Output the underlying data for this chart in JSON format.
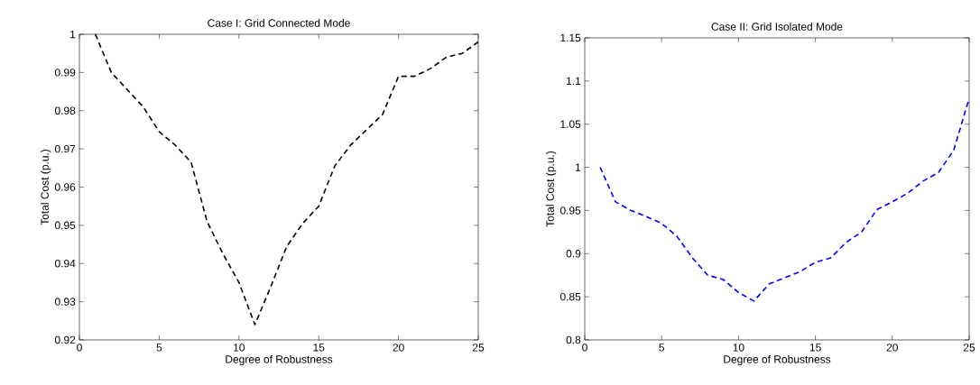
{
  "chart_data": [
    {
      "type": "line",
      "title": "Case I: Grid Connected Mode",
      "xlabel": "Degree of Robustness",
      "ylabel": "Total Cost (p.u.)",
      "x": [
        1,
        2,
        3,
        4,
        5,
        6,
        7,
        8,
        9,
        10,
        11,
        12,
        13,
        14,
        15,
        16,
        17,
        18,
        19,
        20,
        21,
        22,
        23,
        24,
        25
      ],
      "series": [
        {
          "color": "#000000",
          "values": [
            1.0,
            0.99,
            0.9855,
            0.981,
            0.9745,
            0.971,
            0.9665,
            0.951,
            0.9425,
            0.935,
            0.924,
            0.934,
            0.9445,
            0.9505,
            0.955,
            0.9655,
            0.971,
            0.975,
            0.979,
            0.989,
            0.989,
            0.991,
            0.994,
            0.995,
            0.998
          ]
        }
      ],
      "xlim": [
        0,
        25
      ],
      "ylim": [
        0.92,
        1
      ],
      "xticks": [
        0,
        5,
        10,
        15,
        20,
        25
      ],
      "yticks": [
        0.92,
        0.93,
        0.94,
        0.95,
        0.96,
        0.97,
        0.98,
        0.99,
        1
      ],
      "line_style": "dashed"
    },
    {
      "type": "line",
      "title": "Case II: Grid Isolated Mode",
      "xlabel": "Degree of Robustness",
      "ylabel": "Total Cost (p.u.)",
      "x": [
        1,
        2,
        3,
        4,
        5,
        6,
        7,
        8,
        9,
        10,
        11,
        12,
        13,
        14,
        15,
        16,
        17,
        18,
        19,
        20,
        21,
        22,
        23,
        24,
        25
      ],
      "series": [
        {
          "color": "#0000ff",
          "values": [
            1.0,
            0.96,
            0.95,
            0.943,
            0.935,
            0.92,
            0.895,
            0.875,
            0.87,
            0.855,
            0.845,
            0.865,
            0.872,
            0.879,
            0.89,
            0.895,
            0.913,
            0.925,
            0.951,
            0.96,
            0.97,
            0.984,
            0.994,
            1.02,
            1.08
          ]
        }
      ],
      "xlim": [
        0,
        25
      ],
      "ylim": [
        0.8,
        1.15
      ],
      "xticks": [
        0,
        5,
        10,
        15,
        20,
        25
      ],
      "yticks": [
        0.8,
        0.85,
        0.9,
        0.95,
        1,
        1.05,
        1.1,
        1.15
      ],
      "line_style": "dashed"
    }
  ]
}
